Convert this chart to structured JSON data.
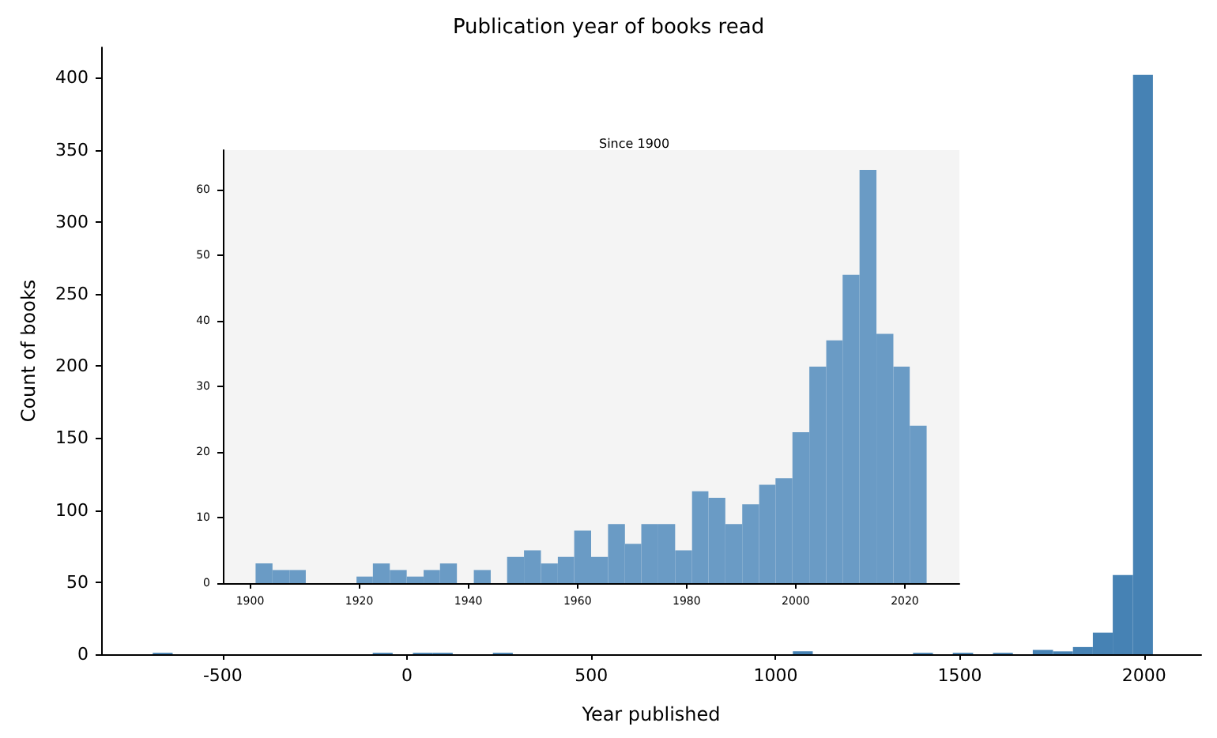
{
  "chart_data": [
    {
      "type": "histogram",
      "title": "Publication year of books read",
      "xlabel": "Year published",
      "ylabel": "Count of books",
      "color": "#4682b4",
      "bins": [
        -690,
        -636,
        -581,
        -527,
        -473,
        -419,
        -364,
        -310,
        -256,
        -201,
        -147,
        -93,
        -39,
        16,
        70,
        124,
        178,
        233,
        287,
        341,
        396,
        450,
        504,
        558,
        613,
        667,
        721,
        776,
        830,
        884,
        938,
        993,
        1047,
        1101,
        1156,
        1210,
        1264,
        1318,
        1373,
        1427,
        1481,
        1536,
        1590,
        1644,
        1698,
        1753,
        1807,
        1861,
        1915,
        1970,
        2024
      ],
      "values": [
        1,
        0,
        0,
        0,
        0,
        0,
        0,
        0,
        0,
        0,
        0,
        1,
        0,
        1,
        1,
        0,
        0,
        1,
        0,
        0,
        0,
        0,
        0,
        0,
        0,
        0,
        0,
        0,
        0,
        0,
        0,
        0,
        2,
        0,
        0,
        0,
        0,
        0,
        1,
        0,
        1,
        0,
        1,
        0,
        3,
        2,
        5,
        15,
        55,
        402
      ],
      "xlim": [
        -830,
        2155
      ],
      "xticks": [
        -500,
        0,
        500,
        1000,
        1500,
        2000
      ],
      "ylim": [
        0,
        421
      ],
      "yticks": [
        0,
        50,
        100,
        150,
        200,
        250,
        300,
        350,
        400
      ],
      "grid": false
    },
    {
      "type": "histogram",
      "title": "Since 1900",
      "color": "#6a9bc5",
      "bins": [
        1901,
        1904.1,
        1907.2,
        1910.2,
        1919.5,
        1922.5,
        1925.6,
        1928.7,
        1931.8,
        1934.8,
        1937.9,
        1941,
        1944.1,
        1947.1,
        1950.2,
        1953.3,
        1956.4,
        1959.4,
        1962.5,
        1965.6,
        1968.7,
        1971.7,
        1974.8,
        1977.9,
        1981,
        1984,
        1987.1,
        1990.2,
        1993.3,
        1996.3,
        1999.4,
        2002.5,
        2005.6,
        2008.6,
        2011.7,
        2014.8,
        2017.9,
        2020.9,
        2024
      ],
      "values": [
        3,
        2,
        2,
        0,
        1,
        3,
        2,
        1,
        2,
        3,
        0,
        2,
        0,
        4,
        5,
        3,
        4,
        8,
        4,
        9,
        6,
        9,
        9,
        5,
        14,
        13,
        9,
        12,
        15,
        16,
        23,
        33,
        37,
        47,
        63,
        38,
        33,
        24
      ],
      "xlim": [
        1895,
        2030
      ],
      "xticks": [
        1900,
        1920,
        1940,
        1960,
        1980,
        2000,
        2020
      ],
      "ylim": [
        0,
        66
      ],
      "yticks": [
        0,
        10,
        20,
        30,
        40,
        50,
        60
      ],
      "grid": false
    }
  ]
}
